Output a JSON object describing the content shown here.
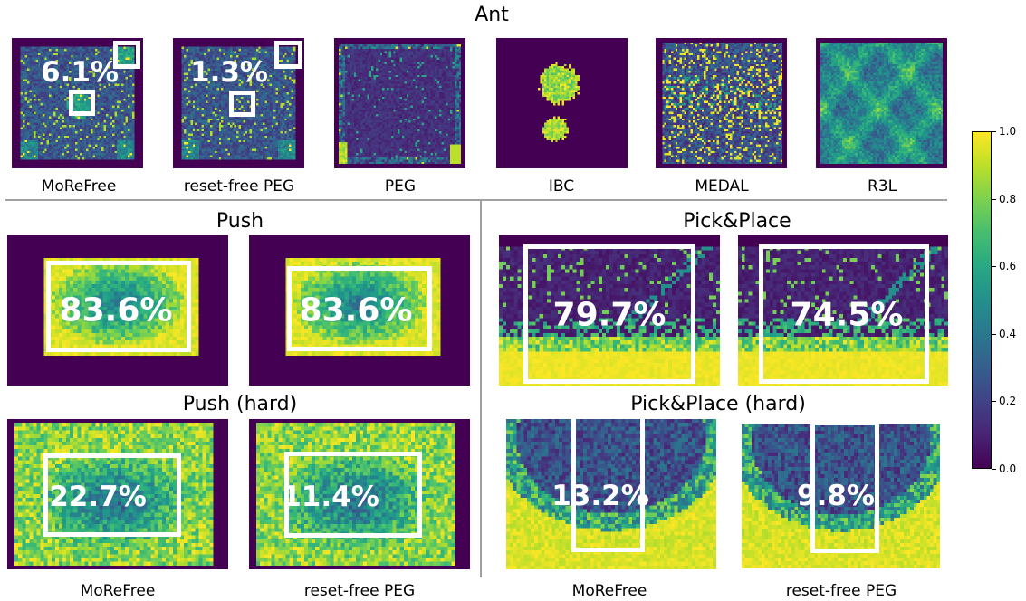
{
  "chart_data": {
    "type": "heatmap",
    "colormap": "viridis",
    "colorbar": {
      "range": [
        0.0,
        1.0
      ],
      "ticks": [
        "0.0",
        "0.2",
        "0.4",
        "0.6",
        "0.8",
        "1.0"
      ]
    },
    "groups": [
      {
        "title": "Ant",
        "panels": [
          {
            "label": "MoReFree",
            "percent": "6.1%",
            "pattern": "ant_a"
          },
          {
            "label": "reset-free PEG",
            "percent": "1.3%",
            "pattern": "ant_b"
          },
          {
            "label": "PEG",
            "percent": "",
            "pattern": "ant_peg"
          },
          {
            "label": "IBC",
            "percent": "",
            "pattern": "ant_ibc"
          },
          {
            "label": "MEDAL",
            "percent": "",
            "pattern": "ant_medal"
          },
          {
            "label": "R3L",
            "percent": "",
            "pattern": "ant_r3l"
          }
        ]
      },
      {
        "title": "Push",
        "panels": [
          {
            "label": "MoReFree",
            "percent": "83.6%",
            "pattern": "push"
          },
          {
            "label": "reset-free PEG",
            "percent": "83.6%",
            "pattern": "push"
          }
        ]
      },
      {
        "title": "Pick&Place",
        "panels": [
          {
            "label": "MoReFree",
            "percent": "79.7%",
            "pattern": "pick"
          },
          {
            "label": "reset-free PEG",
            "percent": "74.5%",
            "pattern": "pick"
          }
        ]
      },
      {
        "title": "Push (hard)",
        "panels": [
          {
            "label": "MoReFree",
            "percent": "22.7%",
            "pattern": "pushhard"
          },
          {
            "label": "reset-free PEG",
            "percent": "11.4%",
            "pattern": "pushhard"
          }
        ]
      },
      {
        "title": "Pick&Place (hard)",
        "panels": [
          {
            "label": "MoReFree",
            "percent": "13.2%",
            "pattern": "pickhard"
          },
          {
            "label": "reset-free PEG",
            "percent": "9.8%",
            "pattern": "pickhard"
          }
        ]
      }
    ]
  },
  "bottom_labels": [
    "MoReFree",
    "reset-free PEG",
    "MoReFree",
    "reset-free PEG"
  ]
}
